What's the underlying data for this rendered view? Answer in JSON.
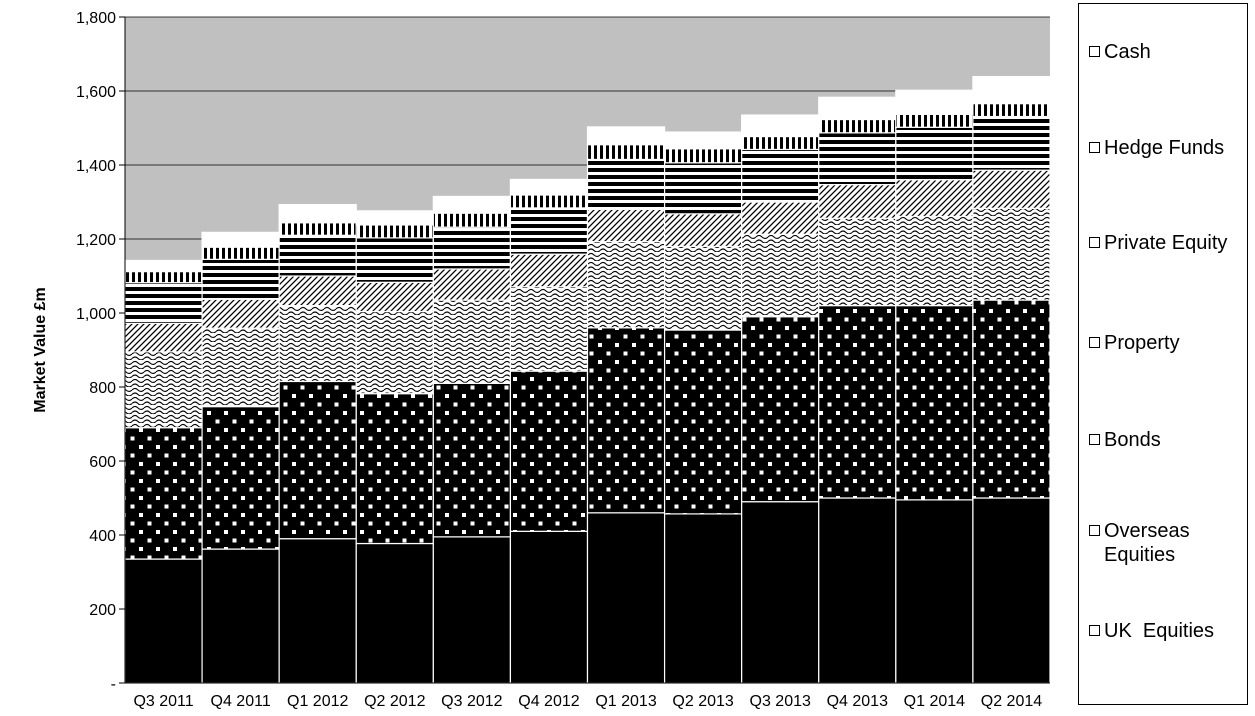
{
  "chart_data": {
    "type": "bar",
    "stacked": true,
    "ylabel": "Market Value £m",
    "ylim": [
      0,
      1800
    ],
    "yticks": [
      0,
      200,
      400,
      600,
      800,
      1000,
      1200,
      1400,
      1600,
      1800
    ],
    "ytick_labels": [
      "-",
      "200",
      "400",
      "600",
      "800",
      "1,000",
      "1,200",
      "1,400",
      "1,600",
      "1,800"
    ],
    "categories": [
      "Q3 2011",
      "Q4 2011",
      "Q1 2012",
      "Q2 2012",
      "Q3 2012",
      "Q4 2012",
      "Q1 2013",
      "Q2 2013",
      "Q3 2013",
      "Q4 2013",
      "Q1 2014",
      "Q2 2014"
    ],
    "grid": true,
    "legend_position": "right",
    "plot_background": "#c0c0c0",
    "series": [
      {
        "name": "UK  Equities",
        "pattern": "solid",
        "values": [
          335,
          362,
          390,
          377,
          395,
          410,
          460,
          457,
          490,
          500,
          495,
          500
        ]
      },
      {
        "name": "Overseas Equities",
        "pattern": "black-dots",
        "values": [
          355,
          385,
          425,
          405,
          415,
          433,
          500,
          497,
          500,
          520,
          525,
          535
        ]
      },
      {
        "name": "Bonds",
        "pattern": "wave",
        "values": [
          205,
          212,
          205,
          222,
          225,
          228,
          233,
          226,
          223,
          236,
          241,
          248
        ]
      },
      {
        "name": "Property",
        "pattern": "diagonal",
        "values": [
          77,
          78,
          80,
          79,
          84,
          88,
          87,
          88,
          87,
          91,
          99,
          103
        ]
      },
      {
        "name": "Private Equity",
        "pattern": "horizontal",
        "values": [
          110,
          108,
          110,
          120,
          113,
          125,
          135,
          138,
          142,
          140,
          142,
          145
        ]
      },
      {
        "name": "Hedge Funds",
        "pattern": "vertical",
        "values": [
          30,
          33,
          34,
          35,
          38,
          35,
          40,
          38,
          35,
          36,
          35,
          35
        ]
      },
      {
        "name": "Cash",
        "pattern": "white",
        "values": [
          30,
          40,
          49,
          38,
          45,
          42,
          48,
          45,
          58,
          60,
          65,
          73
        ]
      }
    ]
  }
}
